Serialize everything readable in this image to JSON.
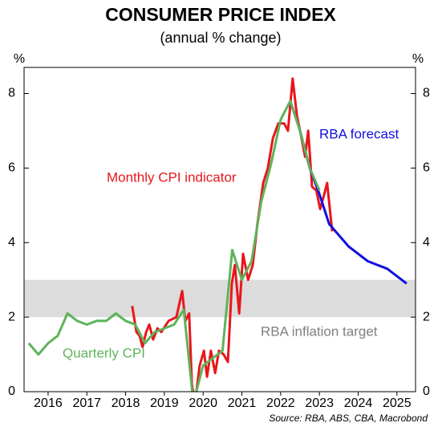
{
  "chart_data": {
    "type": "line",
    "title": "CONSUMER PRICE INDEX",
    "subtitle": "(annual % change)",
    "y_unit_left": "%",
    "y_unit_right": "%",
    "source": "Source: RBA, ABS, CBA, Macrobond",
    "xlim": [
      2015.88,
      2025.98
    ],
    "xticks": [
      {
        "value": 2016.5,
        "label": "2016"
      },
      {
        "value": 2017.5,
        "label": "2017"
      },
      {
        "value": 2018.5,
        "label": "2018"
      },
      {
        "value": 2019.5,
        "label": "2019"
      },
      {
        "value": 2020.5,
        "label": "2020"
      },
      {
        "value": 2021.5,
        "label": "2021"
      },
      {
        "value": 2022.5,
        "label": "2022"
      },
      {
        "value": 2023.5,
        "label": "2023"
      },
      {
        "value": 2024.5,
        "label": "2024"
      },
      {
        "value": 2025.5,
        "label": "2025"
      }
    ],
    "ylim": [
      0,
      8.7
    ],
    "yticks": [
      0,
      2,
      4,
      6,
      8
    ],
    "target_band": [
      2,
      3
    ],
    "target_band_color": "#dcdcdc",
    "target_label": "RBA inflation target",
    "target_label_color": "#808080",
    "series": [
      {
        "name": "Monthly CPI indicator",
        "color": "#e8161b",
        "x": [
          2018.67,
          2018.78,
          2018.86,
          2018.94,
          2019.03,
          2019.11,
          2019.21,
          2019.32,
          2019.42,
          2019.61,
          2019.81,
          2019.96,
          2020.04,
          2020.14,
          2020.21,
          2020.29,
          2020.41,
          2020.52,
          2020.6,
          2020.7,
          2020.81,
          2020.91,
          2021.03,
          2021.14,
          2021.24,
          2021.32,
          2021.43,
          2021.53,
          2021.66,
          2021.78,
          2021.9,
          2022.05,
          2022.17,
          2022.3,
          2022.44,
          2022.59,
          2022.69,
          2022.81,
          2022.92,
          2023.02,
          2023.13,
          2023.21,
          2023.31,
          2023.42,
          2023.52,
          2023.6,
          2023.7,
          2023.83
        ],
        "values": [
          2.3,
          1.6,
          1.5,
          1.2,
          1.6,
          1.8,
          1.4,
          1.7,
          1.6,
          1.9,
          2.0,
          2.7,
          1.9,
          2.1,
          0.2,
          -0.3,
          0.7,
          1.1,
          0.4,
          1.1,
          0.5,
          1.1,
          1.0,
          0.8,
          2.9,
          3.4,
          2.1,
          3.7,
          3.0,
          3.4,
          4.5,
          5.6,
          6.0,
          6.8,
          7.2,
          7.2,
          7.0,
          8.4,
          7.4,
          6.9,
          6.3,
          7.0,
          5.5,
          5.4,
          4.9,
          5.2,
          5.6,
          4.3
        ]
      },
      {
        "name": "RBA forecast",
        "color": "#1010e0",
        "x": [
          2022.75,
          2023.0,
          2023.25,
          2023.5,
          2023.75,
          2024.25,
          2024.75,
          2025.25,
          2025.75
        ],
        "values": [
          7.8,
          7.0,
          6.0,
          5.3,
          4.5,
          3.9,
          3.5,
          3.3,
          2.9
        ]
      },
      {
        "name": "Quarterly CPI",
        "color": "#5fb35a",
        "x": [
          2016.0,
          2016.25,
          2016.5,
          2016.75,
          2017.0,
          2017.25,
          2017.5,
          2017.75,
          2018.0,
          2018.25,
          2018.5,
          2018.75,
          2019.0,
          2019.25,
          2019.5,
          2019.75,
          2020.0,
          2020.25,
          2020.5,
          2020.75,
          2021.0,
          2021.25,
          2021.5,
          2021.75,
          2022.0,
          2022.25,
          2022.5,
          2022.75,
          2023.0,
          2023.25,
          2023.5
        ],
        "values": [
          1.3,
          1.0,
          1.3,
          1.5,
          2.1,
          1.9,
          1.8,
          1.9,
          1.9,
          2.1,
          1.9,
          1.8,
          1.3,
          1.6,
          1.7,
          1.8,
          2.2,
          -0.3,
          0.7,
          0.9,
          1.1,
          3.8,
          3.0,
          3.5,
          5.1,
          6.1,
          7.3,
          7.8,
          7.0,
          6.0,
          5.4
        ]
      }
    ]
  }
}
